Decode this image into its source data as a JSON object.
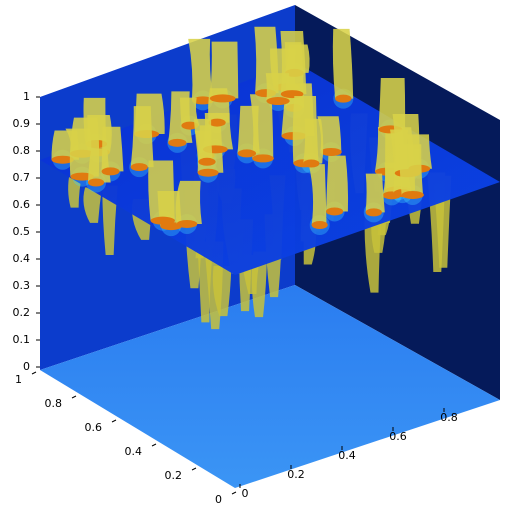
{
  "chart_data": {
    "type": "volume3d",
    "zlim": [
      0,
      1
    ],
    "zticks": [
      0,
      0.1,
      0.2,
      0.3,
      0.4,
      0.5,
      0.6,
      0.7,
      0.8,
      0.9,
      1
    ],
    "ylim": [
      0,
      1
    ],
    "yticks": [
      0,
      0.2,
      0.4,
      0.6,
      0.8,
      1
    ],
    "xlim": [
      0,
      1
    ],
    "xticks": [
      0,
      0.2,
      0.4,
      0.6,
      0.8
    ]
  }
}
